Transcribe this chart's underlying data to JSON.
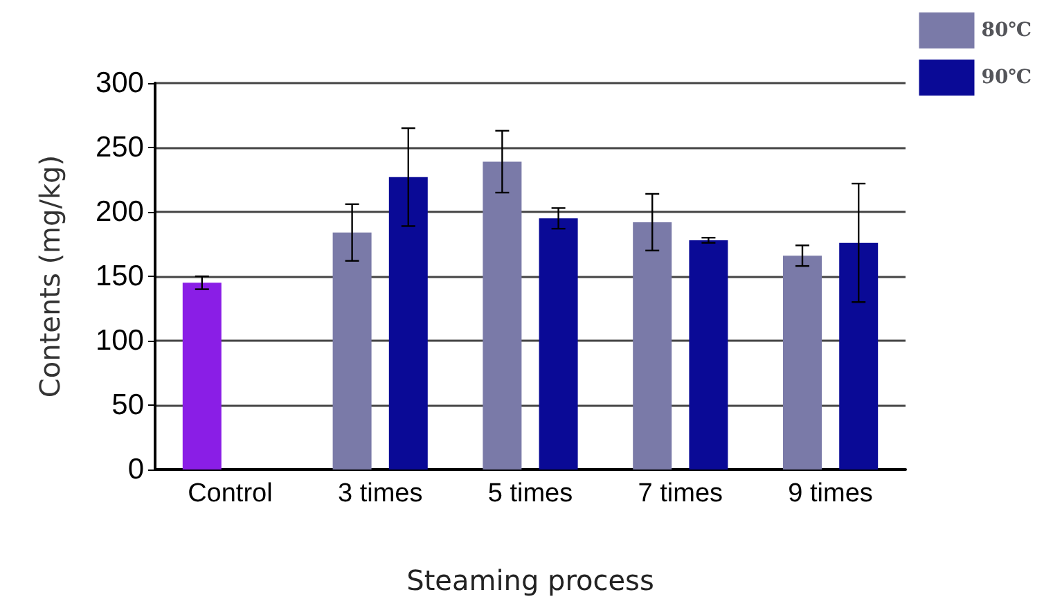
{
  "chart_data": {
    "type": "bar",
    "xlabel": "Steaming process",
    "ylabel": "Contents (mg/kg)",
    "categories": [
      "Control",
      "3 times",
      "5 times",
      "7 times",
      "9 times"
    ],
    "series": [
      {
        "name": "80℃",
        "color": "#7a7aa8",
        "colors": [
          "#8a1ee6",
          "#7a7aa8",
          "#7a7aa8",
          "#7a7aa8",
          "#7a7aa8"
        ],
        "values": [
          145,
          184,
          239,
          192,
          166
        ],
        "errors": [
          5,
          22,
          24,
          22,
          8
        ]
      },
      {
        "name": "90℃",
        "color": "#0a0a96",
        "values": [
          null,
          227,
          195,
          178,
          176
        ],
        "errors": [
          null,
          38,
          8,
          2,
          46
        ]
      }
    ],
    "ylim": [
      0,
      300
    ],
    "yticks": [
      0,
      50,
      100,
      150,
      200,
      250,
      300
    ],
    "grid": "y",
    "legend": "top right"
  }
}
